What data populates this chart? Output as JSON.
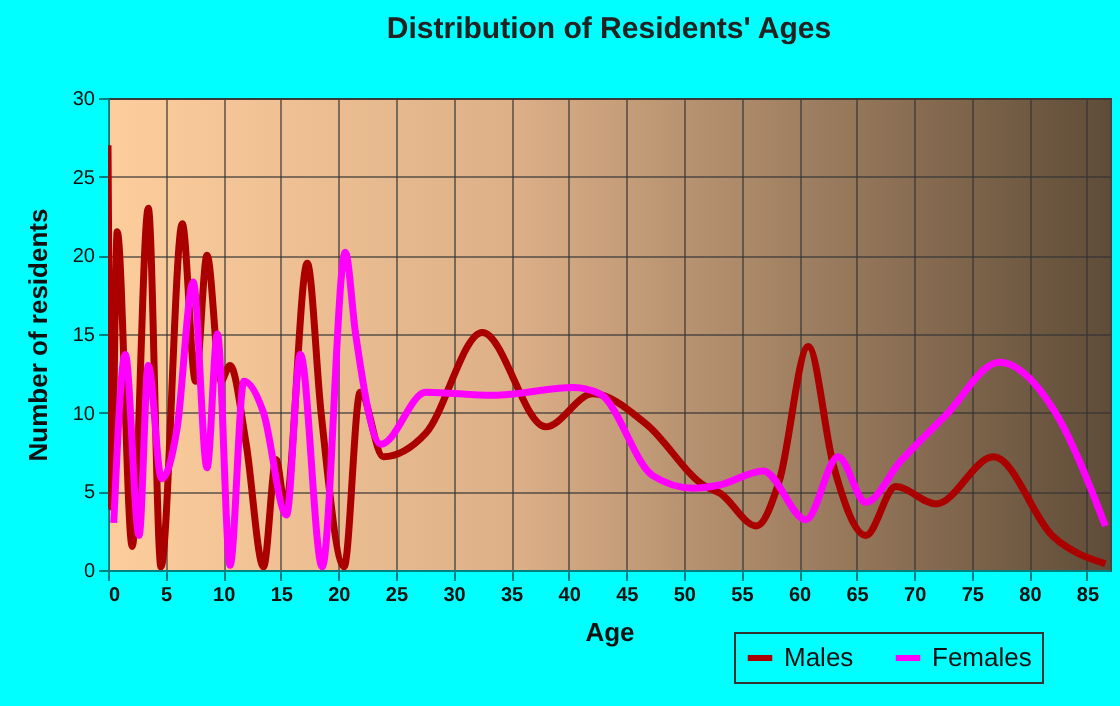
{
  "chart_data": {
    "type": "line",
    "title": "Distribution of Residents' Ages",
    "xlabel": "Age",
    "ylabel": "Number of residents",
    "xlim": [
      0,
      87
    ],
    "xticks": [
      0,
      5,
      10,
      15,
      20,
      25,
      30,
      35,
      40,
      45,
      50,
      55,
      60,
      65,
      70,
      75,
      80,
      85
    ],
    "ylim": [
      0,
      30
    ],
    "yticks": [
      0,
      5,
      10,
      15,
      20,
      25,
      30
    ],
    "grid": true,
    "legend": "bottom right",
    "series": [
      {
        "name": "Males",
        "color": "#aa0000",
        "x": [
          0,
          0.3,
          0.8,
          2.1,
          3.5,
          4.6,
          6.45,
          7.6,
          8.6,
          9.8,
          10.6,
          12,
          13.5,
          14.6,
          15.4,
          17.3,
          18.5,
          20.5,
          21.9,
          23.9,
          27.6,
          32.5,
          38,
          42.1,
          46.7,
          51.9,
          53.1,
          56.3,
          58.3,
          60.8,
          63,
          65.8,
          68.4,
          71.9,
          76.9,
          82.1,
          86.6
        ],
        "values": [
          27,
          4,
          21.5,
          1.5,
          23,
          0.2,
          22,
          12,
          20,
          12,
          13,
          8,
          0.2,
          7,
          4,
          19.5,
          10,
          0.2,
          11.3,
          7.2,
          8.7,
          15.1,
          9.1,
          11.2,
          9.3,
          5.3,
          4.9,
          2.8,
          5.7,
          14.2,
          6.6,
          2.2,
          5.3,
          4.2,
          7.2,
          2.1,
          0.4
        ]
      },
      {
        "name": "Females",
        "color": "#ff00ff",
        "x": [
          0.5,
          1.5,
          2.7,
          3.5,
          4.65,
          6,
          7.4,
          8.6,
          9.5,
          10.6,
          11.8,
          13.5,
          15.5,
          16.7,
          18.6,
          20.6,
          21.5,
          23.7,
          27.6,
          33.4,
          40.4,
          42.7,
          47.3,
          50.8,
          53.1,
          56.9,
          60.6,
          63.4,
          65.8,
          68.8,
          72.7,
          77.4,
          82.1,
          86.6
        ],
        "values": [
          3,
          13.7,
          2.2,
          13,
          5.8,
          9,
          18.3,
          6.5,
          15,
          0.3,
          12,
          10,
          3.5,
          13.7,
          0.2,
          20.2,
          15,
          8,
          11.3,
          11.1,
          11.6,
          11.2,
          6,
          5.2,
          5.4,
          6.3,
          3.2,
          7.2,
          4.3,
          6.9,
          9.8,
          13.2,
          10.2,
          2.8
        ]
      }
    ]
  }
}
